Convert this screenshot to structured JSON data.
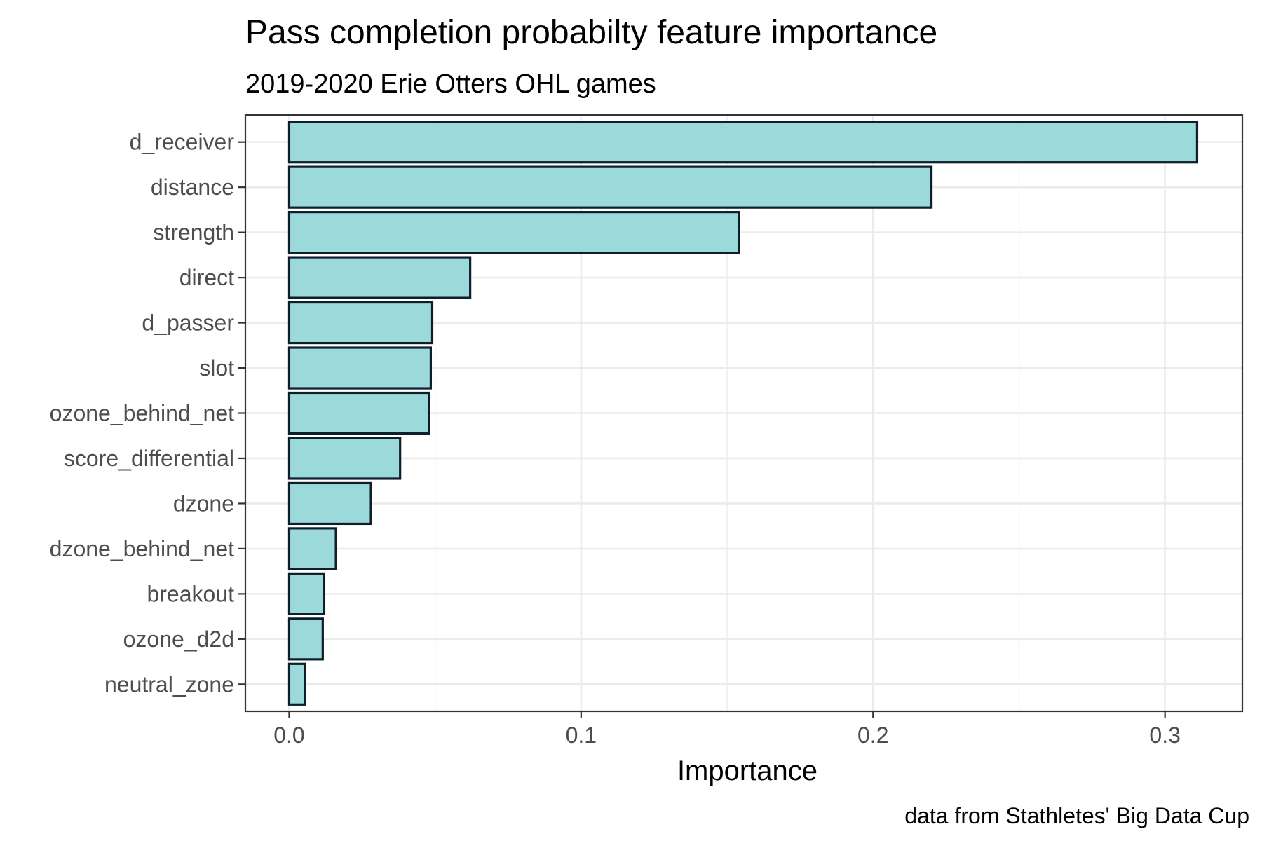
{
  "chart_data": {
    "type": "bar",
    "orientation": "horizontal",
    "title": "Pass completion probabilty feature importance",
    "subtitle": "2019-2020 Erie Otters OHL games",
    "xlabel": "Importance",
    "ylabel": "",
    "caption": "data from Stathletes' Big Data Cup",
    "categories": [
      "d_receiver",
      "distance",
      "strength",
      "direct",
      "d_passer",
      "slot",
      "ozone_behind_net",
      "score_differential",
      "dzone",
      "dzone_behind_net",
      "breakout",
      "ozone_d2d",
      "neutral_zone"
    ],
    "values": [
      0.311,
      0.22,
      0.154,
      0.062,
      0.049,
      0.0485,
      0.048,
      0.038,
      0.028,
      0.016,
      0.012,
      0.0115,
      0.0055
    ],
    "x_ticks": [
      "0.0",
      "0.1",
      "0.2",
      "0.3"
    ],
    "x_tick_values": [
      0,
      0.1,
      0.2,
      0.3
    ],
    "xlim": [
      -0.015,
      0.3265
    ],
    "grid": true,
    "colors": {
      "bar_fill": "#9cd9da",
      "bar_stroke": "#0e1f2b",
      "grid": "#ebebeb",
      "panel_border": "#333333",
      "axis_text": "#4d4d4d",
      "title_text": "#000000"
    }
  }
}
